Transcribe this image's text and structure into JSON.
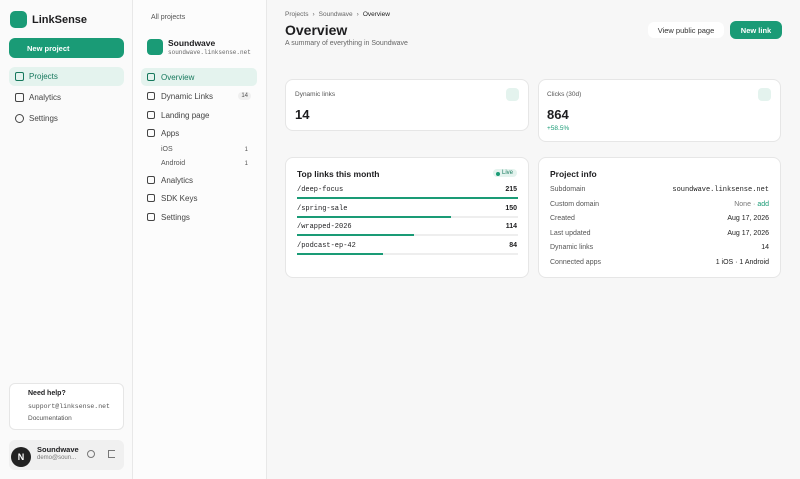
{
  "brand": "LinkSense",
  "sidebar": {
    "new_project": "New project",
    "nav": [
      "Projects",
      "Analytics",
      "Settings"
    ],
    "help": {
      "title": "Need help?",
      "email": "support@linksense.net",
      "docs": "Documentation"
    },
    "user": {
      "initial": "N",
      "name": "Soundwave",
      "email": "demo@soun..."
    }
  },
  "project_nav": {
    "back": "All projects",
    "name": "Soundwave",
    "domain": "soundwave.linksense.net",
    "items": [
      {
        "label": "Overview"
      },
      {
        "label": "Dynamic Links",
        "badge": 14
      },
      {
        "label": "Landing page"
      },
      {
        "label": "Apps"
      },
      {
        "label": "iOS",
        "badge": 1
      },
      {
        "label": "Android",
        "badge": 1
      },
      {
        "label": "Analytics"
      },
      {
        "label": "SDK Keys"
      },
      {
        "label": "Settings"
      }
    ]
  },
  "header": {
    "breadcrumbs": [
      "Projects",
      "Soundwave",
      "Overview"
    ],
    "title": "Overview",
    "subtitle": "A summary of everything in Soundwave",
    "view_public": "View public page",
    "new_link": "New link"
  },
  "stats": [
    {
      "label": "Dynamic links",
      "value": 14
    },
    {
      "label": "Clicks (30d)",
      "value": 864,
      "change": "+58.5%"
    }
  ],
  "top_links": {
    "title": "Top links this month",
    "badge": "Live",
    "rows": [
      {
        "path": "/deep-focus",
        "clicks": 215
      },
      {
        "path": "/spring-sale",
        "clicks": 150
      },
      {
        "path": "/wrapped-2026",
        "clicks": 114
      },
      {
        "path": "/podcast-ep-42",
        "clicks": 84
      }
    ]
  },
  "project_info": {
    "title": "Project info",
    "rows": [
      {
        "label": "Subdomain",
        "value": "soundwave.linksense.net"
      },
      {
        "label": "Custom domain",
        "value": "None",
        "separator": "·",
        "action": "add"
      },
      {
        "label": "Created",
        "value": "Aug 17, 2026"
      },
      {
        "label": "Last updated",
        "value": "Aug 17, 2026"
      },
      {
        "label": "Dynamic links",
        "value": "14"
      },
      {
        "label": "Connected apps",
        "value": "1 iOS · 1 Android"
      }
    ]
  }
}
